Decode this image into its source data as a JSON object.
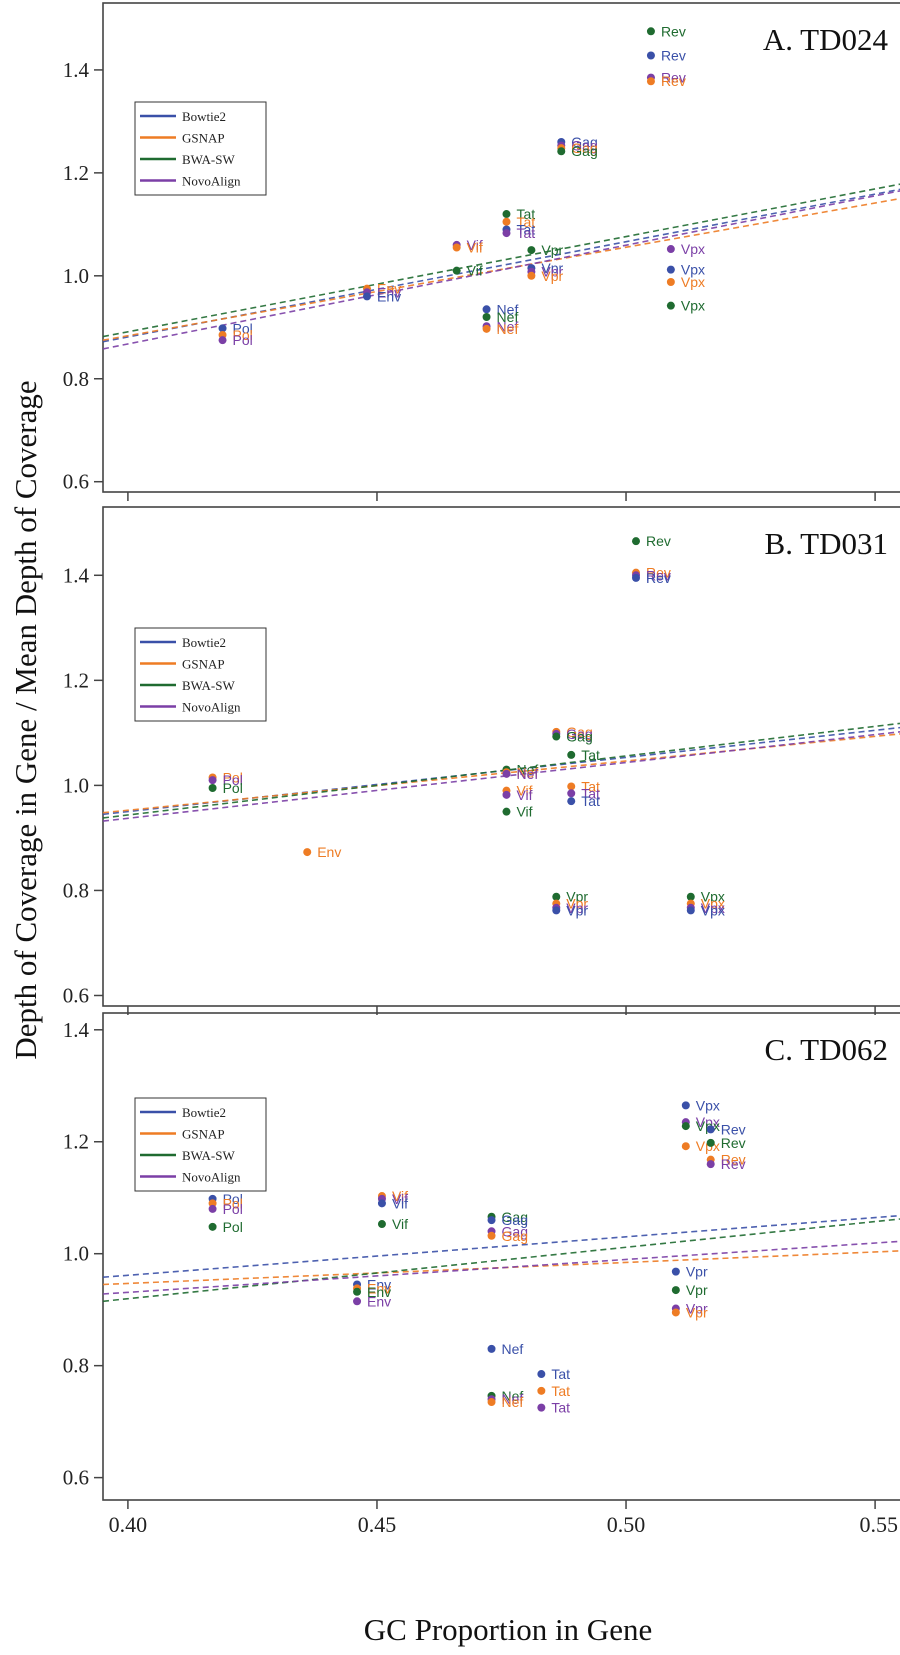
{
  "figure": {
    "ylabel": "Depth of Coverage in Gene / Mean Depth of Coverage",
    "xlabel": "GC Proportion in Gene",
    "x_ticks": [
      "0.40",
      "0.45",
      "0.50",
      "0.55"
    ],
    "x_tick_values": [
      0.4,
      0.45,
      0.5,
      0.55
    ],
    "xlim": [
      0.395,
      0.555
    ]
  },
  "legend": {
    "entries": [
      {
        "name": "Bowtie2",
        "color": "#3a50a8"
      },
      {
        "name": "GSNAP",
        "color": "#ee7c24"
      },
      {
        "name": "BWA-SW",
        "color": "#1f6b30"
      },
      {
        "name": "NovoAlign",
        "color": "#7b3fa6"
      }
    ]
  },
  "chart_data": [
    {
      "type": "scatter",
      "title": "A. TD024",
      "ylim": [
        0.58,
        1.53
      ],
      "y_ticks": [
        "0.6",
        "0.8",
        "1.0",
        "1.2",
        "1.4"
      ],
      "y_tick_values": [
        0.6,
        0.8,
        1.0,
        1.2,
        1.4
      ],
      "trend_lines": [
        {
          "color": "#3a50a8",
          "y0": 0.872,
          "y1": 1.168
        },
        {
          "color": "#ee7c24",
          "y0": 0.875,
          "y1": 1.15
        },
        {
          "color": "#1f6b30",
          "y0": 0.882,
          "y1": 1.178
        },
        {
          "color": "#7b3fa6",
          "y0": 0.858,
          "y1": 1.165
        }
      ],
      "points": [
        {
          "label": "Pol",
          "x": 0.419,
          "y": 0.898,
          "color": "#3a50a8"
        },
        {
          "label": "Pol",
          "x": 0.419,
          "y": 0.885,
          "color": "#ee7c24"
        },
        {
          "label": "Pol",
          "x": 0.419,
          "y": 0.875,
          "color": "#7b3fa6"
        },
        {
          "label": "Env",
          "x": 0.448,
          "y": 0.975,
          "color": "#ee7c24"
        },
        {
          "label": "Env",
          "x": 0.448,
          "y": 0.968,
          "color": "#7b3fa6"
        },
        {
          "label": "Env",
          "x": 0.448,
          "y": 0.96,
          "color": "#3a50a8"
        },
        {
          "label": "Vif",
          "x": 0.466,
          "y": 1.06,
          "color": "#7b3fa6"
        },
        {
          "label": "Vif",
          "x": 0.466,
          "y": 1.055,
          "color": "#ee7c24"
        },
        {
          "label": "Vif",
          "x": 0.466,
          "y": 1.01,
          "color": "#1f6b30"
        },
        {
          "label": "Nef",
          "x": 0.472,
          "y": 0.935,
          "color": "#3a50a8"
        },
        {
          "label": "Nef",
          "x": 0.472,
          "y": 0.92,
          "color": "#1f6b30"
        },
        {
          "label": "Nef",
          "x": 0.472,
          "y": 0.902,
          "color": "#7b3fa6"
        },
        {
          "label": "Nef",
          "x": 0.472,
          "y": 0.897,
          "color": "#ee7c24"
        },
        {
          "label": "Tat",
          "x": 0.476,
          "y": 1.12,
          "color": "#1f6b30"
        },
        {
          "label": "Tat",
          "x": 0.476,
          "y": 1.105,
          "color": "#ee7c24"
        },
        {
          "label": "Tat",
          "x": 0.476,
          "y": 1.09,
          "color": "#3a50a8"
        },
        {
          "label": "Tat",
          "x": 0.476,
          "y": 1.083,
          "color": "#7b3fa6"
        },
        {
          "label": "Vpr",
          "x": 0.481,
          "y": 1.05,
          "color": "#1f6b30"
        },
        {
          "label": "Vpr",
          "x": 0.481,
          "y": 1.015,
          "color": "#3a50a8"
        },
        {
          "label": "Vpr",
          "x": 0.481,
          "y": 1.008,
          "color": "#7b3fa6"
        },
        {
          "label": "Vpr",
          "x": 0.481,
          "y": 1.0,
          "color": "#ee7c24"
        },
        {
          "label": "Gag",
          "x": 0.487,
          "y": 1.26,
          "color": "#3a50a8"
        },
        {
          "label": "Gag",
          "x": 0.487,
          "y": 1.253,
          "color": "#7b3fa6"
        },
        {
          "label": "Gag",
          "x": 0.487,
          "y": 1.248,
          "color": "#ee7c24"
        },
        {
          "label": "Gag",
          "x": 0.487,
          "y": 1.242,
          "color": "#1f6b30"
        },
        {
          "label": "Rev",
          "x": 0.505,
          "y": 1.475,
          "color": "#1f6b30"
        },
        {
          "label": "Rev",
          "x": 0.505,
          "y": 1.428,
          "color": "#3a50a8"
        },
        {
          "label": "Rev",
          "x": 0.505,
          "y": 1.385,
          "color": "#7b3fa6"
        },
        {
          "label": "Rev",
          "x": 0.505,
          "y": 1.378,
          "color": "#ee7c24"
        },
        {
          "label": "Vpx",
          "x": 0.509,
          "y": 1.052,
          "color": "#7b3fa6"
        },
        {
          "label": "Vpx",
          "x": 0.509,
          "y": 1.012,
          "color": "#3a50a8"
        },
        {
          "label": "Vpx",
          "x": 0.509,
          "y": 0.988,
          "color": "#ee7c24"
        },
        {
          "label": "Vpx",
          "x": 0.509,
          "y": 0.942,
          "color": "#1f6b30"
        }
      ]
    },
    {
      "type": "scatter",
      "title": "B. TD031",
      "ylim": [
        0.58,
        1.53
      ],
      "y_ticks": [
        "0.6",
        "0.8",
        "1.0",
        "1.2",
        "1.4"
      ],
      "y_tick_values": [
        0.6,
        0.8,
        1.0,
        1.2,
        1.4
      ],
      "trend_lines": [
        {
          "color": "#3a50a8",
          "y0": 0.945,
          "y1": 1.11
        },
        {
          "color": "#ee7c24",
          "y0": 0.948,
          "y1": 1.098
        },
        {
          "color": "#1f6b30",
          "y0": 0.938,
          "y1": 1.118
        },
        {
          "color": "#7b3fa6",
          "y0": 0.932,
          "y1": 1.102
        }
      ],
      "points": [
        {
          "label": "Pol",
          "x": 0.417,
          "y": 1.015,
          "color": "#ee7c24"
        },
        {
          "label": "Pol",
          "x": 0.417,
          "y": 1.01,
          "color": "#7b3fa6"
        },
        {
          "label": "Pol",
          "x": 0.417,
          "y": 0.995,
          "color": "#1f6b30"
        },
        {
          "label": "Env",
          "x": 0.436,
          "y": 0.873,
          "color": "#ee7c24"
        },
        {
          "label": "Nef",
          "x": 0.476,
          "y": 1.03,
          "color": "#1f6b30"
        },
        {
          "label": "Nef",
          "x": 0.476,
          "y": 1.025,
          "color": "#ee7c24"
        },
        {
          "label": "Nef",
          "x": 0.476,
          "y": 1.022,
          "color": "#7b3fa6"
        },
        {
          "label": "Vif",
          "x": 0.476,
          "y": 0.99,
          "color": "#ee7c24"
        },
        {
          "label": "Vif",
          "x": 0.476,
          "y": 0.982,
          "color": "#7b3fa6"
        },
        {
          "label": "Vif",
          "x": 0.476,
          "y": 0.95,
          "color": "#1f6b30"
        },
        {
          "label": "Gag",
          "x": 0.486,
          "y": 1.102,
          "color": "#ee7c24"
        },
        {
          "label": "Gag",
          "x": 0.486,
          "y": 1.098,
          "color": "#7b3fa6"
        },
        {
          "label": "Gag",
          "x": 0.486,
          "y": 1.093,
          "color": "#1f6b30"
        },
        {
          "label": "Tat",
          "x": 0.489,
          "y": 1.058,
          "color": "#1f6b30"
        },
        {
          "label": "Tat",
          "x": 0.489,
          "y": 0.998,
          "color": "#ee7c24"
        },
        {
          "label": "Tat",
          "x": 0.489,
          "y": 0.985,
          "color": "#7b3fa6"
        },
        {
          "label": "Tat",
          "x": 0.489,
          "y": 0.97,
          "color": "#3a50a8"
        },
        {
          "label": "Vpr",
          "x": 0.486,
          "y": 0.788,
          "color": "#1f6b30"
        },
        {
          "label": "Vpr",
          "x": 0.486,
          "y": 0.775,
          "color": "#ee7c24"
        },
        {
          "label": "Vpr",
          "x": 0.486,
          "y": 0.767,
          "color": "#7b3fa6"
        },
        {
          "label": "Vpr",
          "x": 0.486,
          "y": 0.762,
          "color": "#3a50a8"
        },
        {
          "label": "Rev",
          "x": 0.502,
          "y": 1.465,
          "color": "#1f6b30"
        },
        {
          "label": "Rev",
          "x": 0.502,
          "y": 1.405,
          "color": "#ee7c24"
        },
        {
          "label": "Rev",
          "x": 0.502,
          "y": 1.4,
          "color": "#7b3fa6"
        },
        {
          "label": "Rev",
          "x": 0.502,
          "y": 1.395,
          "color": "#3a50a8"
        },
        {
          "label": "Vpx",
          "x": 0.513,
          "y": 0.788,
          "color": "#1f6b30"
        },
        {
          "label": "Vpx",
          "x": 0.513,
          "y": 0.775,
          "color": "#ee7c24"
        },
        {
          "label": "Vpx",
          "x": 0.513,
          "y": 0.767,
          "color": "#7b3fa6"
        },
        {
          "label": "Vpx",
          "x": 0.513,
          "y": 0.762,
          "color": "#3a50a8"
        }
      ]
    },
    {
      "type": "scatter",
      "title": "C. TD062",
      "ylim": [
        0.56,
        1.43
      ],
      "y_ticks": [
        "0.6",
        "0.8",
        "1.0",
        "1.2",
        "1.4"
      ],
      "y_tick_values": [
        0.6,
        0.8,
        1.0,
        1.2,
        1.4
      ],
      "trend_lines": [
        {
          "color": "#3a50a8",
          "y0": 0.958,
          "y1": 1.068
        },
        {
          "color": "#ee7c24",
          "y0": 0.945,
          "y1": 1.005
        },
        {
          "color": "#1f6b30",
          "y0": 0.915,
          "y1": 1.062
        },
        {
          "color": "#7b3fa6",
          "y0": 0.928,
          "y1": 1.022
        }
      ],
      "points": [
        {
          "label": "Pol",
          "x": 0.417,
          "y": 1.098,
          "color": "#3a50a8"
        },
        {
          "label": "Pol",
          "x": 0.417,
          "y": 1.09,
          "color": "#ee7c24"
        },
        {
          "label": "Pol",
          "x": 0.417,
          "y": 1.08,
          "color": "#7b3fa6"
        },
        {
          "label": "Pol",
          "x": 0.417,
          "y": 1.048,
          "color": "#1f6b30"
        },
        {
          "label": "Vif",
          "x": 0.451,
          "y": 1.103,
          "color": "#ee7c24"
        },
        {
          "label": "Vif",
          "x": 0.451,
          "y": 1.098,
          "color": "#7b3fa6"
        },
        {
          "label": "Vif",
          "x": 0.451,
          "y": 1.09,
          "color": "#3a50a8"
        },
        {
          "label": "Vif",
          "x": 0.451,
          "y": 1.053,
          "color": "#1f6b30"
        },
        {
          "label": "Env",
          "x": 0.446,
          "y": 0.945,
          "color": "#3a50a8"
        },
        {
          "label": "Env",
          "x": 0.446,
          "y": 0.938,
          "color": "#ee7c24"
        },
        {
          "label": "Env",
          "x": 0.446,
          "y": 0.932,
          "color": "#1f6b30"
        },
        {
          "label": "Env",
          "x": 0.446,
          "y": 0.915,
          "color": "#7b3fa6"
        },
        {
          "label": "Gag",
          "x": 0.473,
          "y": 1.066,
          "color": "#1f6b30"
        },
        {
          "label": "Gag",
          "x": 0.473,
          "y": 1.06,
          "color": "#3a50a8"
        },
        {
          "label": "Gag",
          "x": 0.473,
          "y": 1.04,
          "color": "#7b3fa6"
        },
        {
          "label": "Gag",
          "x": 0.473,
          "y": 1.032,
          "color": "#ee7c24"
        },
        {
          "label": "Nef",
          "x": 0.473,
          "y": 0.83,
          "color": "#3a50a8"
        },
        {
          "label": "Nef",
          "x": 0.473,
          "y": 0.746,
          "color": "#1f6b30"
        },
        {
          "label": "Nef",
          "x": 0.473,
          "y": 0.74,
          "color": "#7b3fa6"
        },
        {
          "label": "Nef",
          "x": 0.473,
          "y": 0.735,
          "color": "#ee7c24"
        },
        {
          "label": "Tat",
          "x": 0.483,
          "y": 0.785,
          "color": "#3a50a8"
        },
        {
          "label": "Tat",
          "x": 0.483,
          "y": 0.755,
          "color": "#ee7c24"
        },
        {
          "label": "Tat",
          "x": 0.483,
          "y": 0.725,
          "color": "#7b3fa6"
        },
        {
          "label": "Vpx",
          "x": 0.512,
          "y": 1.265,
          "color": "#3a50a8"
        },
        {
          "label": "Vpx",
          "x": 0.512,
          "y": 1.235,
          "color": "#7b3fa6"
        },
        {
          "label": "Vpx",
          "x": 0.512,
          "y": 1.228,
          "color": "#1f6b30"
        },
        {
          "label": "Vpx",
          "x": 0.512,
          "y": 1.192,
          "color": "#ee7c24"
        },
        {
          "label": "Rev",
          "x": 0.517,
          "y": 1.222,
          "color": "#3a50a8"
        },
        {
          "label": "Rev",
          "x": 0.517,
          "y": 1.198,
          "color": "#1f6b30"
        },
        {
          "label": "Rev",
          "x": 0.517,
          "y": 1.168,
          "color": "#ee7c24"
        },
        {
          "label": "Rev",
          "x": 0.517,
          "y": 1.16,
          "color": "#7b3fa6"
        },
        {
          "label": "Vpr",
          "x": 0.51,
          "y": 0.968,
          "color": "#3a50a8"
        },
        {
          "label": "Vpr",
          "x": 0.51,
          "y": 0.935,
          "color": "#1f6b30"
        },
        {
          "label": "Vpr",
          "x": 0.51,
          "y": 0.902,
          "color": "#7b3fa6"
        },
        {
          "label": "Vpr",
          "x": 0.51,
          "y": 0.895,
          "color": "#ee7c24"
        }
      ]
    }
  ]
}
